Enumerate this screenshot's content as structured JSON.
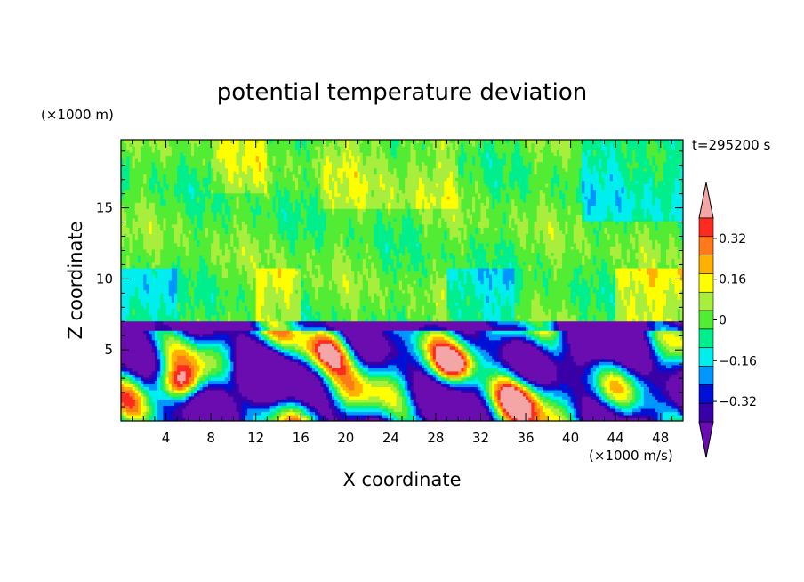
{
  "chart_data": {
    "type": "heatmap",
    "title": "potential temperature deviation",
    "xlabel": "X coordinate",
    "ylabel": "Z coordinate",
    "x_unit": "(×1000 m/s)",
    "y_unit": "(×1000 m)",
    "time_label": "t=295200 s",
    "xlim": [
      0,
      50
    ],
    "ylim": [
      0,
      19.8
    ],
    "x_ticks": [
      4,
      8,
      12,
      16,
      20,
      24,
      28,
      32,
      36,
      40,
      44,
      48
    ],
    "y_ticks": [
      5,
      10,
      15
    ],
    "colorbar": {
      "levels": [
        -0.4,
        -0.32,
        -0.24,
        -0.16,
        -0.08,
        0,
        0.08,
        0.16,
        0.24,
        0.32,
        0.4
      ],
      "labels": [
        "0.32",
        "0.16",
        "0",
        "−0.16",
        "−0.32"
      ],
      "label_values": [
        0.32,
        0.16,
        0,
        -0.16,
        -0.32
      ],
      "colors_top_to_bottom": [
        "#f4a6a6",
        "#ff2a1f",
        "#ff7a1a",
        "#ffb000",
        "#ffff00",
        "#a8ee3c",
        "#52ec34",
        "#00ee8c",
        "#00eeee",
        "#0096ff",
        "#0010d4",
        "#3a00a8",
        "#6a0cb0"
      ]
    }
  }
}
